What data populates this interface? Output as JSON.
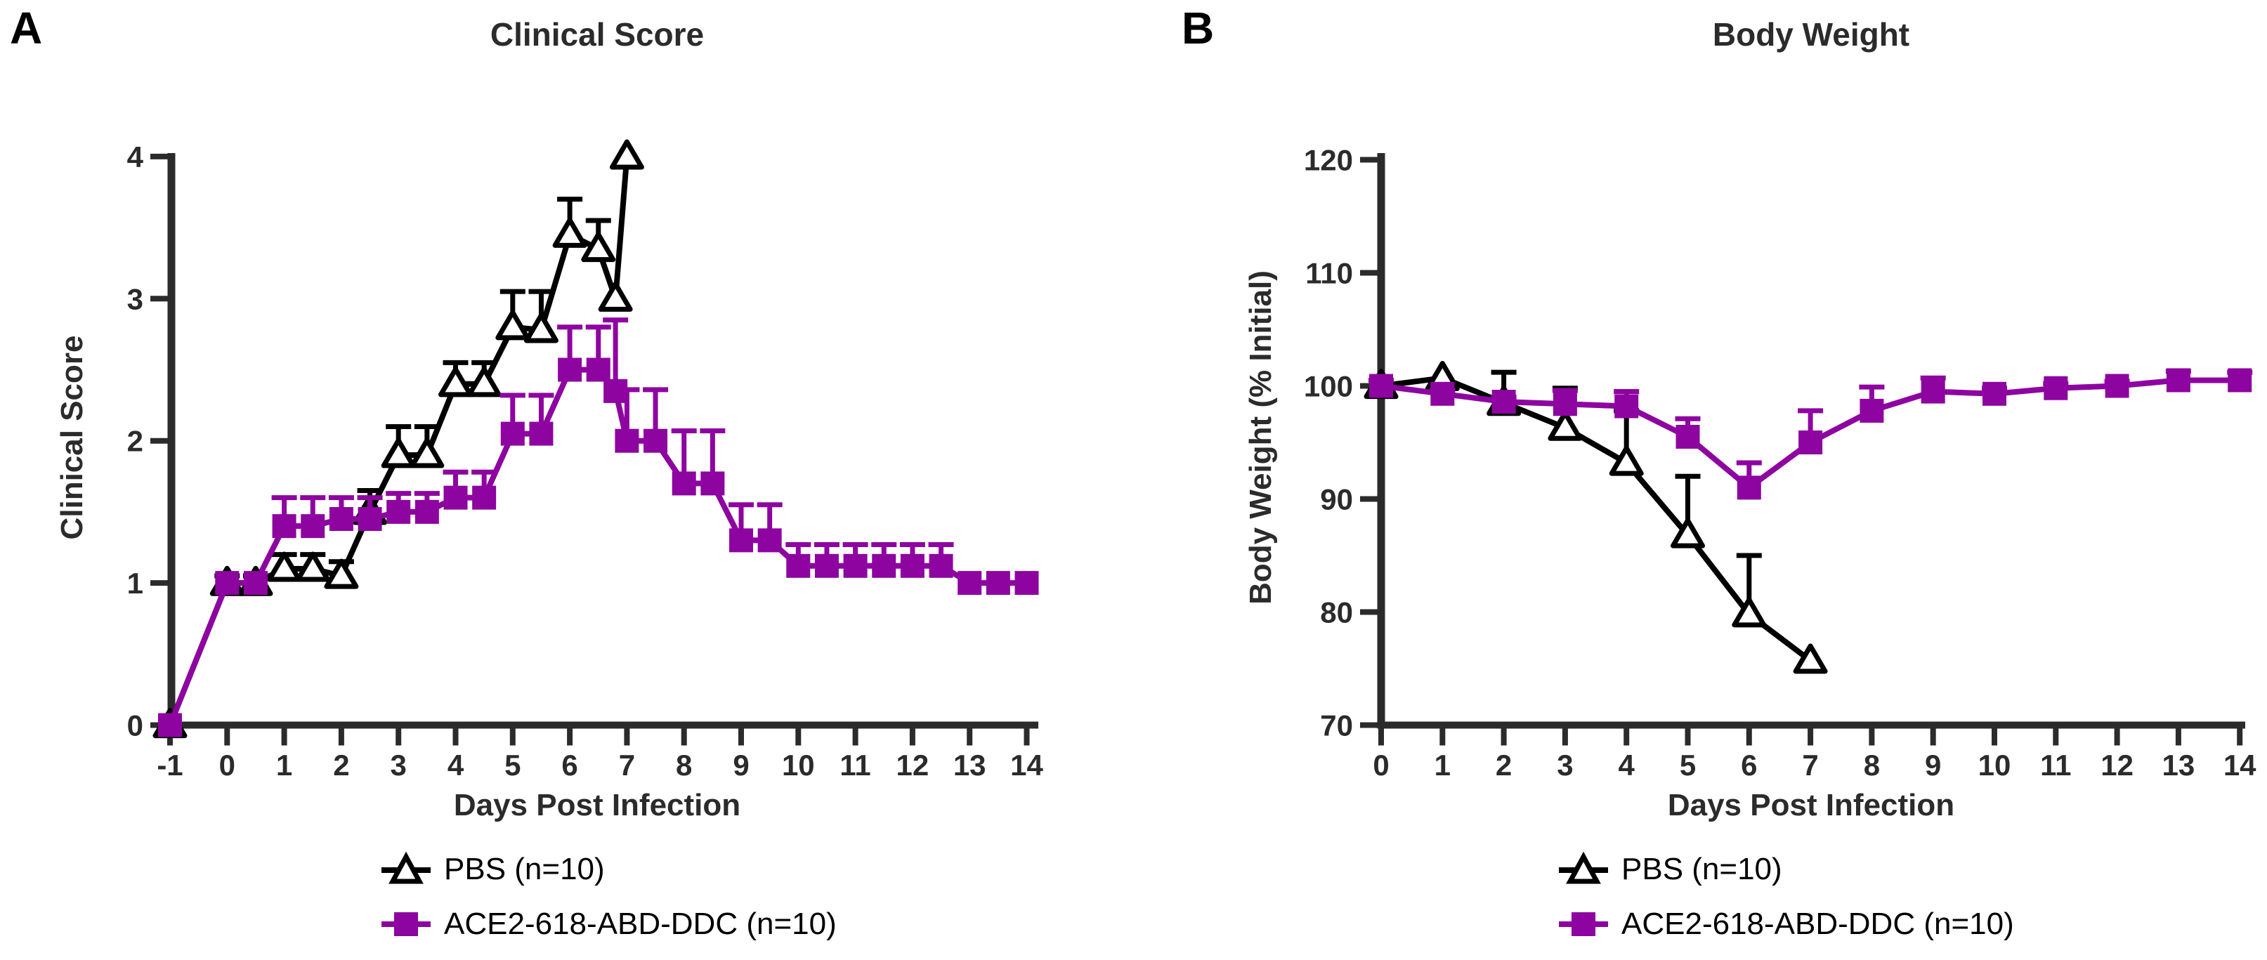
{
  "colors": {
    "pbs": "#000000",
    "ace2": "#8E04A0",
    "axis": "#2b2b2b",
    "background": "#ffffff"
  },
  "panels": [
    {
      "letter": "A"
    },
    {
      "letter": "B"
    }
  ],
  "legend": {
    "pbs_label": "PBS (n=10)",
    "ace2_label": "ACE2-618-ABD-DDC (n=10)"
  },
  "chart_data": [
    {
      "type": "line",
      "panel": "A",
      "title": "Clinical Score",
      "xlabel": "Days Post Infection",
      "ylabel": "Clinical Score",
      "xlim": [
        -1.5,
        14.8
      ],
      "ylim": [
        0,
        4
      ],
      "xticks": [
        -1,
        0,
        1,
        2,
        3,
        4,
        5,
        6,
        7,
        8,
        9,
        10,
        11,
        12,
        13,
        14
      ],
      "yticks": [
        0,
        1,
        2,
        3,
        4
      ],
      "grid": false,
      "legend_position": "bottom",
      "error_bars": "upper",
      "series": [
        {
          "name": "PBS (n=10)",
          "marker": "open-triangle",
          "x": [
            -1,
            0,
            0.5,
            1,
            1.5,
            2,
            2.5,
            3,
            3.5,
            4,
            4.5,
            5,
            5.5,
            6,
            6.5,
            6.8,
            7
          ],
          "y": [
            0,
            1,
            1,
            1.1,
            1.1,
            1.05,
            1.5,
            1.9,
            1.9,
            2.4,
            2.4,
            2.8,
            2.78,
            3.45,
            3.35,
            3.0,
            4.0
          ],
          "err_up": [
            0,
            0.05,
            0.05,
            0.1,
            0.1,
            0.1,
            0.15,
            0.2,
            0.2,
            0.15,
            0.15,
            0.25,
            0.27,
            0.25,
            0.2,
            0,
            0
          ]
        },
        {
          "name": "ACE2-618-ABD-DDC (n=10)",
          "marker": "filled-square",
          "x": [
            -1,
            0,
            0.5,
            1,
            1.5,
            2,
            2.5,
            3,
            3.5,
            4,
            4.5,
            5,
            5.5,
            6,
            6.5,
            6.8,
            7,
            7.5,
            8,
            8.5,
            9,
            9.5,
            10,
            10.5,
            11,
            11.5,
            12,
            12.5,
            13,
            13.5,
            14
          ],
          "y": [
            0,
            1,
            1,
            1.4,
            1.4,
            1.45,
            1.45,
            1.5,
            1.5,
            1.6,
            1.6,
            2.05,
            2.05,
            2.5,
            2.5,
            2.35,
            2.0,
            2.0,
            1.7,
            1.7,
            1.3,
            1.3,
            1.12,
            1.12,
            1.12,
            1.12,
            1.12,
            1.12,
            1.0,
            1.0,
            1.0
          ],
          "err_up": [
            0,
            0,
            0,
            0.2,
            0.2,
            0.15,
            0.15,
            0.13,
            0.13,
            0.18,
            0.18,
            0.27,
            0.27,
            0.3,
            0.3,
            0.5,
            0.36,
            0.36,
            0.37,
            0.37,
            0.25,
            0.25,
            0.15,
            0.15,
            0.15,
            0.15,
            0.15,
            0.15,
            0,
            0,
            0
          ]
        }
      ]
    },
    {
      "type": "line",
      "panel": "B",
      "title": "Body Weight",
      "xlabel": "Days Post Infection",
      "ylabel": "Body Weight (% Initial)",
      "xlim": [
        0,
        14
      ],
      "ylim": [
        70,
        120
      ],
      "xticks": [
        0,
        1,
        2,
        3,
        4,
        5,
        6,
        7,
        8,
        9,
        10,
        11,
        12,
        13,
        14
      ],
      "yticks": [
        70,
        80,
        90,
        100,
        110,
        120
      ],
      "grid": false,
      "legend_position": "bottom",
      "error_bars": "upper",
      "series": [
        {
          "name": "PBS (n=10)",
          "marker": "open-triangle",
          "x": [
            0,
            1,
            2,
            3,
            4,
            5,
            6,
            7
          ],
          "y": [
            100,
            100.7,
            98.5,
            96.3,
            93.2,
            86.8,
            79.8,
            75.7
          ],
          "err_up": [
            0,
            0,
            2.7,
            3.5,
            4.6,
            5.2,
            5.2,
            0
          ]
        },
        {
          "name": "ACE2-618-ABD-DDC (n=10)",
          "marker": "filled-square",
          "x": [
            0,
            1,
            2,
            3,
            4,
            5,
            6,
            7,
            8,
            9,
            10,
            11,
            12,
            13,
            14
          ],
          "y": [
            100,
            99.3,
            98.6,
            98.4,
            98.2,
            95.5,
            91,
            95,
            97.8,
            99.5,
            99.3,
            99.8,
            100,
            100.5,
            100.5
          ],
          "err_up": [
            0.5,
            0.3,
            0.4,
            1.2,
            1.3,
            1.6,
            2.2,
            2.8,
            2.1,
            1.2,
            0.5,
            0.4,
            0.4,
            0.8,
            0.7
          ]
        }
      ]
    }
  ]
}
